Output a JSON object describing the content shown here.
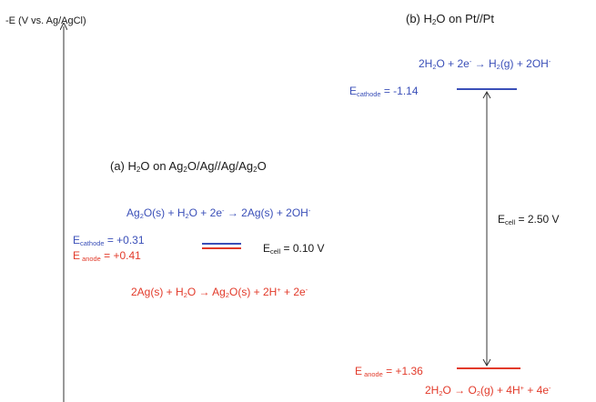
{
  "axis": {
    "label": "-E (V vs. Ag/AgCl)"
  },
  "panel_a": {
    "title": {
      "pre": "(a) H",
      "s1": "2",
      "m1": "O on Ag",
      "s2": "2",
      "m2": "O/Ag//Ag/Ag",
      "s3": "2",
      "end": "O"
    },
    "cathode_reaction": {
      "p1": "Ag",
      "s1": "2",
      "p2": "O(s) + H",
      "s2": "2",
      "p3": "O + 2e",
      "sup1": "-",
      "p4": " → 2Ag(s) + 2OH",
      "sup2": "-"
    },
    "cathode_potential": {
      "E": "E",
      "sub": "cathode",
      "value": " = +0.31"
    },
    "anode_potential": {
      "E": "E",
      "sub": " anode",
      "value": " = +0.41"
    },
    "cell": {
      "E": "E",
      "sub": "cell",
      "value": " = 0.10 V"
    },
    "anode_reaction": {
      "p1": "2Ag(s) + H",
      "s1": "2",
      "p2": "O → Ag",
      "s2": "2",
      "p3": "O(s) + 2H",
      "sup1": "+",
      "p4": " + 2e",
      "sup2": "-"
    }
  },
  "panel_b": {
    "title": {
      "pre": "(b) H",
      "s1": "2",
      "end": "O on Pt//Pt"
    },
    "cathode_reaction": {
      "p1": "2H",
      "s1": "2",
      "p2": "O + 2e",
      "sup1": "-",
      "p3": " → H",
      "s2": "2",
      "p4": "(g) + 2OH",
      "sup2": "-"
    },
    "cathode_potential": {
      "E": "E",
      "sub": "cathode",
      "value": " = -1.14"
    },
    "cell": {
      "E": "E",
      "sub": "cell",
      "value": " = 2.50 V"
    },
    "anode_potential": {
      "E": "E",
      "sub": " anode",
      "value": " = +1.36"
    },
    "anode_reaction": {
      "p1": "2H",
      "s1": "2",
      "p2": "O → O",
      "s2": "2",
      "p3": "(g) + 4H",
      "sup1": "+",
      "p4": " + 4e",
      "sup2": "-"
    }
  },
  "colors": {
    "cathode": "#3a4fb8",
    "anode": "#e23a2a",
    "text": "#1a1a1a"
  }
}
